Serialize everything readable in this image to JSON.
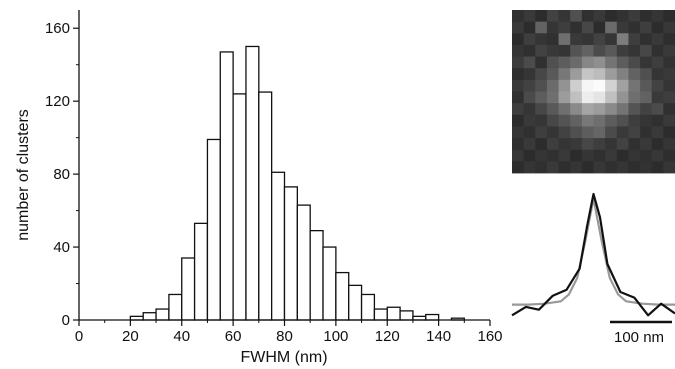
{
  "chart_data": [
    {
      "type": "bar",
      "panel": "histogram",
      "xlabel": "FWHM (nm)",
      "ylabel": "number of clusters",
      "xlim": [
        0,
        160
      ],
      "ylim": [
        0,
        170
      ],
      "xticks": [
        0,
        20,
        40,
        60,
        80,
        100,
        120,
        140,
        160
      ],
      "yticks": [
        0,
        40,
        80,
        120,
        160
      ],
      "bin_width": 5,
      "bin_starts": [
        20,
        25,
        30,
        35,
        40,
        45,
        50,
        55,
        60,
        65,
        70,
        75,
        80,
        85,
        90,
        95,
        100,
        105,
        110,
        115,
        120,
        125,
        130,
        135,
        140,
        145
      ],
      "values": [
        2,
        4,
        6,
        14,
        34,
        53,
        99,
        147,
        124,
        150,
        125,
        81,
        73,
        63,
        49,
        40,
        26,
        19,
        14,
        6,
        7,
        5,
        2,
        3,
        0,
        1
      ],
      "grid": false
    },
    {
      "type": "line",
      "panel": "line-profile",
      "series": [
        {
          "x": [
            -10,
            -8.3,
            -6.7,
            -5,
            -3.3,
            -1.7,
            -0.8,
            0,
            0.8,
            1.7,
            3.3,
            5,
            6.7,
            8.3,
            10
          ],
          "values": [
            0.1,
            0.28,
            0.22,
            0.52,
            0.65,
            1.1,
            2.0,
            2.7,
            2.2,
            1.2,
            0.6,
            0.48,
            0.1,
            0.35,
            0.14
          ]
        },
        {
          "x": [
            -10,
            -8,
            -6,
            -4,
            -3,
            -2,
            -1,
            0,
            1,
            2,
            3,
            4,
            6,
            8,
            10
          ],
          "values": [
            0.33,
            0.33,
            0.35,
            0.4,
            0.55,
            0.9,
            1.7,
            2.6,
            1.7,
            0.9,
            0.55,
            0.4,
            0.35,
            0.33,
            0.33
          ]
        }
      ],
      "scalebar_label": "100 nm"
    }
  ],
  "micrograph": {
    "grid_size": 14,
    "intensity": [
      [
        0.08,
        0.12,
        0.06,
        0.16,
        0.1,
        0.22,
        0.08,
        0.12,
        0.06,
        0.09,
        0.13,
        0.07,
        0.1,
        0.06
      ],
      [
        0.12,
        0.06,
        0.3,
        0.1,
        0.14,
        0.08,
        0.18,
        0.06,
        0.34,
        0.12,
        0.08,
        0.14,
        0.06,
        0.11
      ],
      [
        0.06,
        0.14,
        0.1,
        0.08,
        0.36,
        0.12,
        0.1,
        0.16,
        0.1,
        0.42,
        0.14,
        0.08,
        0.12,
        0.07
      ],
      [
        0.1,
        0.08,
        0.16,
        0.12,
        0.1,
        0.24,
        0.3,
        0.2,
        0.26,
        0.14,
        0.1,
        0.18,
        0.08,
        0.12
      ],
      [
        0.13,
        0.2,
        0.08,
        0.22,
        0.28,
        0.34,
        0.46,
        0.5,
        0.38,
        0.28,
        0.2,
        0.1,
        0.14,
        0.09
      ],
      [
        0.07,
        0.1,
        0.18,
        0.26,
        0.4,
        0.56,
        0.74,
        0.7,
        0.56,
        0.44,
        0.3,
        0.22,
        0.1,
        0.12
      ],
      [
        0.12,
        0.16,
        0.22,
        0.34,
        0.52,
        0.78,
        0.96,
        0.98,
        0.8,
        0.58,
        0.38,
        0.26,
        0.16,
        0.1
      ],
      [
        0.08,
        0.2,
        0.28,
        0.36,
        0.56,
        0.72,
        0.92,
        0.88,
        0.72,
        0.52,
        0.36,
        0.3,
        0.12,
        0.14
      ],
      [
        0.14,
        0.1,
        0.18,
        0.26,
        0.36,
        0.48,
        0.6,
        0.56,
        0.48,
        0.38,
        0.24,
        0.16,
        0.2,
        0.08
      ],
      [
        0.06,
        0.12,
        0.1,
        0.18,
        0.24,
        0.3,
        0.4,
        0.36,
        0.28,
        0.22,
        0.14,
        0.1,
        0.08,
        0.12
      ],
      [
        0.1,
        0.08,
        0.14,
        0.1,
        0.16,
        0.22,
        0.28,
        0.32,
        0.2,
        0.12,
        0.16,
        0.08,
        0.12,
        0.06
      ],
      [
        0.07,
        0.12,
        0.06,
        0.14,
        0.1,
        0.12,
        0.18,
        0.14,
        0.1,
        0.16,
        0.08,
        0.12,
        0.06,
        0.1
      ],
      [
        0.11,
        0.06,
        0.1,
        0.08,
        0.12,
        0.06,
        0.1,
        0.08,
        0.12,
        0.06,
        0.1,
        0.08,
        0.11,
        0.07
      ],
      [
        0.06,
        0.1,
        0.08,
        0.12,
        0.07,
        0.1,
        0.06,
        0.11,
        0.08,
        0.1,
        0.07,
        0.09,
        0.06,
        0.1
      ]
    ]
  }
}
